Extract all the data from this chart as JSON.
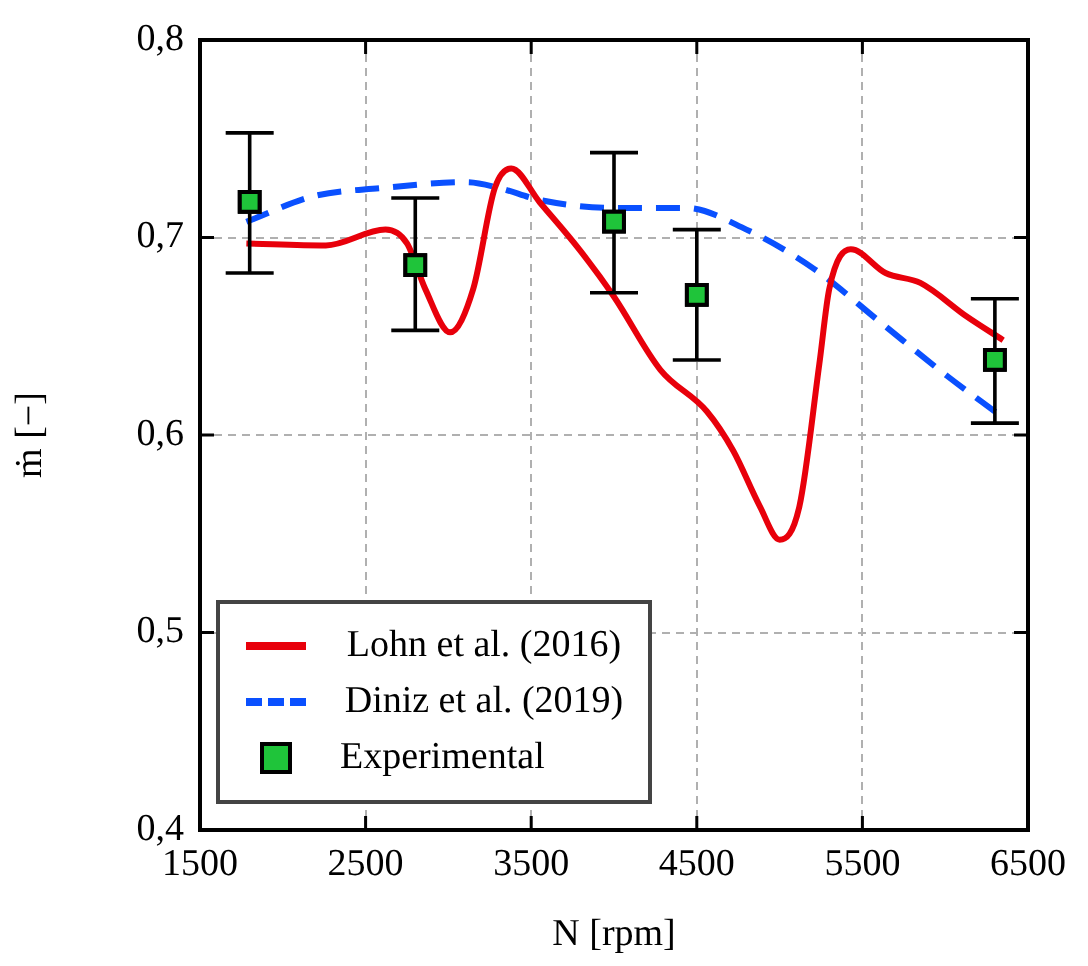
{
  "chart_data": {
    "type": "line",
    "xlabel": "N [rpm]",
    "ylabel": "ṁ [−]",
    "xlim": [
      1500,
      6500
    ],
    "xticks": [
      1500,
      2500,
      3500,
      4500,
      5500,
      6500
    ],
    "ylim": [
      0.4,
      0.8
    ],
    "yticks": [
      {
        "value": 0.4,
        "label": "0,4"
      },
      {
        "value": 0.5,
        "label": "0,5"
      },
      {
        "value": 0.6,
        "label": "0,6"
      },
      {
        "value": 0.7,
        "label": "0,7"
      },
      {
        "value": 0.8,
        "label": "0,8"
      }
    ],
    "grid": true,
    "legend": "bottom left",
    "series": [
      {
        "name": "Lohn et al. (2016)",
        "color": "#e8000b",
        "line_style": "solid",
        "marker": "none",
        "x": [
          1780,
          2260,
          2620,
          2750,
          2860,
          3010,
          3150,
          3280,
          3380,
          3550,
          3790,
          4000,
          4280,
          4560,
          4720,
          4880,
          5000,
          5120,
          5240,
          5300,
          5430,
          5640,
          5850,
          6130,
          6350
        ],
        "values": [
          0.697,
          0.696,
          0.704,
          0.697,
          0.674,
          0.652,
          0.674,
          0.725,
          0.735,
          0.718,
          0.694,
          0.67,
          0.633,
          0.612,
          0.592,
          0.564,
          0.547,
          0.564,
          0.636,
          0.674,
          0.694,
          0.682,
          0.677,
          0.66,
          0.648
        ]
      },
      {
        "name": "Diniz et al. (2019)",
        "color": "#0a50ff",
        "line_style": "dashed",
        "marker": "none",
        "x": [
          1780,
          2190,
          2590,
          3110,
          3310,
          3550,
          4000,
          4430,
          4800,
          5210,
          5610,
          6010,
          6330
        ],
        "values": [
          0.708,
          0.721,
          0.725,
          0.728,
          0.725,
          0.719,
          0.715,
          0.715,
          0.704,
          0.684,
          0.657,
          0.63,
          0.61
        ]
      },
      {
        "name": "Experimental",
        "type": "scatter",
        "color": "#1fc43a",
        "marker": "square",
        "x": [
          1800,
          2800,
          4000,
          4500,
          6300
        ],
        "values": [
          0.718,
          0.686,
          0.708,
          0.671,
          0.638
        ],
        "errors": [
          [
            0.682,
            0.753
          ],
          [
            0.653,
            0.72
          ],
          [
            0.672,
            0.743
          ],
          [
            0.638,
            0.704
          ],
          [
            0.606,
            0.669
          ]
        ]
      }
    ]
  }
}
